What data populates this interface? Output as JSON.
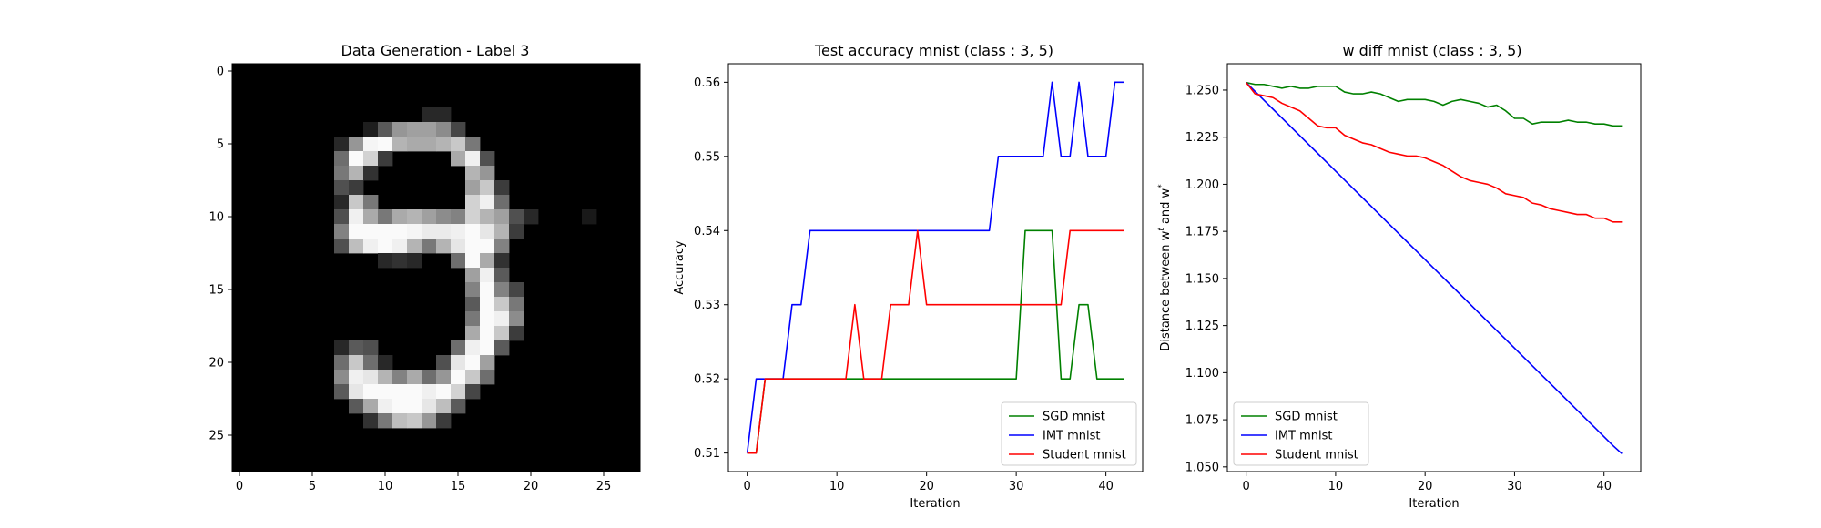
{
  "panel1": {
    "title": "Data Generation - Label 3",
    "xticks": [
      "0",
      "5",
      "10",
      "15",
      "20",
      "25"
    ],
    "yticks": [
      "0",
      "5",
      "10",
      "15",
      "20",
      "25"
    ],
    "image_size": [
      28,
      28
    ],
    "grid_rows": 28,
    "grid_cols": 28
  },
  "chart_data": [
    {
      "type": "line",
      "title": "Test accuracy mnist (class : 3, 5)",
      "xlabel": "Iteration",
      "ylabel": "Accuracy",
      "xlim": [
        -2.1,
        44.1
      ],
      "ylim": [
        0.5075,
        0.5625
      ],
      "xticks": [
        0,
        10,
        20,
        30,
        40
      ],
      "yticks": [
        0.51,
        0.52,
        0.53,
        0.54,
        0.55,
        0.56
      ],
      "ytick_labels": [
        "0.51",
        "0.52",
        "0.53",
        "0.54",
        "0.55",
        "0.56"
      ],
      "legend_position": "lower right",
      "x": [
        0,
        1,
        2,
        3,
        4,
        5,
        6,
        7,
        8,
        9,
        10,
        11,
        12,
        13,
        14,
        15,
        16,
        17,
        18,
        19,
        20,
        21,
        22,
        23,
        24,
        25,
        26,
        27,
        28,
        29,
        30,
        31,
        32,
        33,
        34,
        35,
        36,
        37,
        38,
        39,
        40,
        41,
        42
      ],
      "series": [
        {
          "name": "SGD mnist",
          "color": "#008000",
          "values": [
            0.51,
            0.51,
            0.52,
            0.52,
            0.52,
            0.52,
            0.52,
            0.52,
            0.52,
            0.52,
            0.52,
            0.52,
            0.52,
            0.52,
            0.52,
            0.52,
            0.52,
            0.52,
            0.52,
            0.52,
            0.52,
            0.52,
            0.52,
            0.52,
            0.52,
            0.52,
            0.52,
            0.52,
            0.52,
            0.52,
            0.52,
            0.54,
            0.54,
            0.54,
            0.54,
            0.52,
            0.52,
            0.53,
            0.53,
            0.52,
            0.52,
            0.52,
            0.52
          ]
        },
        {
          "name": "IMT mnist",
          "color": "#0000ff",
          "values": [
            0.51,
            0.52,
            0.52,
            0.52,
            0.52,
            0.53,
            0.53,
            0.54,
            0.54,
            0.54,
            0.54,
            0.54,
            0.54,
            0.54,
            0.54,
            0.54,
            0.54,
            0.54,
            0.54,
            0.54,
            0.54,
            0.54,
            0.54,
            0.54,
            0.54,
            0.54,
            0.54,
            0.54,
            0.55,
            0.55,
            0.55,
            0.55,
            0.55,
            0.55,
            0.56,
            0.55,
            0.55,
            0.56,
            0.55,
            0.55,
            0.55,
            0.56,
            0.56
          ]
        },
        {
          "name": "Student mnist",
          "color": "#ff0000",
          "values": [
            0.51,
            0.51,
            0.52,
            0.52,
            0.52,
            0.52,
            0.52,
            0.52,
            0.52,
            0.52,
            0.52,
            0.52,
            0.53,
            0.52,
            0.52,
            0.52,
            0.53,
            0.53,
            0.53,
            0.54,
            0.53,
            0.53,
            0.53,
            0.53,
            0.53,
            0.53,
            0.53,
            0.53,
            0.53,
            0.53,
            0.53,
            0.53,
            0.53,
            0.53,
            0.53,
            0.53,
            0.54,
            0.54,
            0.54,
            0.54,
            0.54,
            0.54,
            0.54
          ]
        }
      ]
    },
    {
      "type": "line",
      "title": "w diff mnist (class : 3, 5)",
      "xlabel": "Iteration",
      "ylabel": "Distance between w",
      "ylabel_sup1": "t",
      "ylabel_mid": " and w",
      "ylabel_sup2": "*",
      "xlim": [
        -2.1,
        44.1
      ],
      "ylim": [
        1.0475,
        1.264
      ],
      "xticks": [
        0,
        10,
        20,
        30,
        40
      ],
      "yticks": [
        1.05,
        1.075,
        1.1,
        1.125,
        1.15,
        1.175,
        1.2,
        1.225,
        1.25
      ],
      "ytick_labels": [
        "1.050",
        "1.075",
        "1.100",
        "1.125",
        "1.150",
        "1.175",
        "1.200",
        "1.225",
        "1.250"
      ],
      "legend_position": "lower left",
      "x": [
        0,
        1,
        2,
        3,
        4,
        5,
        6,
        7,
        8,
        9,
        10,
        11,
        12,
        13,
        14,
        15,
        16,
        17,
        18,
        19,
        20,
        21,
        22,
        23,
        24,
        25,
        26,
        27,
        28,
        29,
        30,
        31,
        32,
        33,
        34,
        35,
        36,
        37,
        38,
        39,
        40,
        41,
        42
      ],
      "series": [
        {
          "name": "SGD mnist",
          "color": "#008000",
          "values": [
            1.254,
            1.253,
            1.253,
            1.252,
            1.251,
            1.252,
            1.251,
            1.251,
            1.252,
            1.252,
            1.252,
            1.249,
            1.248,
            1.248,
            1.249,
            1.248,
            1.246,
            1.244,
            1.245,
            1.245,
            1.245,
            1.244,
            1.242,
            1.244,
            1.245,
            1.244,
            1.243,
            1.241,
            1.242,
            1.239,
            1.235,
            1.235,
            1.232,
            1.233,
            1.233,
            1.233,
            1.234,
            1.233,
            1.233,
            1.232,
            1.232,
            1.231,
            1.231
          ]
        },
        {
          "name": "IMT mnist",
          "color": "#0000ff",
          "values": [
            1.254,
            1.2493,
            1.2446,
            1.2399,
            1.2352,
            1.2305,
            1.2258,
            1.2211,
            1.2164,
            1.2117,
            1.207,
            1.2023,
            1.1976,
            1.1929,
            1.1882,
            1.1835,
            1.1788,
            1.1741,
            1.1694,
            1.1647,
            1.16,
            1.1553,
            1.1506,
            1.1459,
            1.1412,
            1.1365,
            1.1318,
            1.1271,
            1.1224,
            1.1177,
            1.113,
            1.1083,
            1.1036,
            1.0989,
            1.0942,
            1.0895,
            1.0848,
            1.0801,
            1.0754,
            1.0707,
            1.066,
            1.0613,
            1.057
          ]
        },
        {
          "name": "Student mnist",
          "color": "#ff0000",
          "values": [
            1.254,
            1.248,
            1.247,
            1.246,
            1.243,
            1.241,
            1.239,
            1.235,
            1.231,
            1.23,
            1.23,
            1.226,
            1.224,
            1.222,
            1.221,
            1.219,
            1.217,
            1.216,
            1.215,
            1.215,
            1.214,
            1.212,
            1.21,
            1.207,
            1.204,
            1.202,
            1.201,
            1.2,
            1.198,
            1.195,
            1.194,
            1.193,
            1.19,
            1.189,
            1.187,
            1.186,
            1.185,
            1.184,
            1.184,
            1.182,
            1.182,
            1.18,
            1.18
          ]
        }
      ]
    }
  ]
}
